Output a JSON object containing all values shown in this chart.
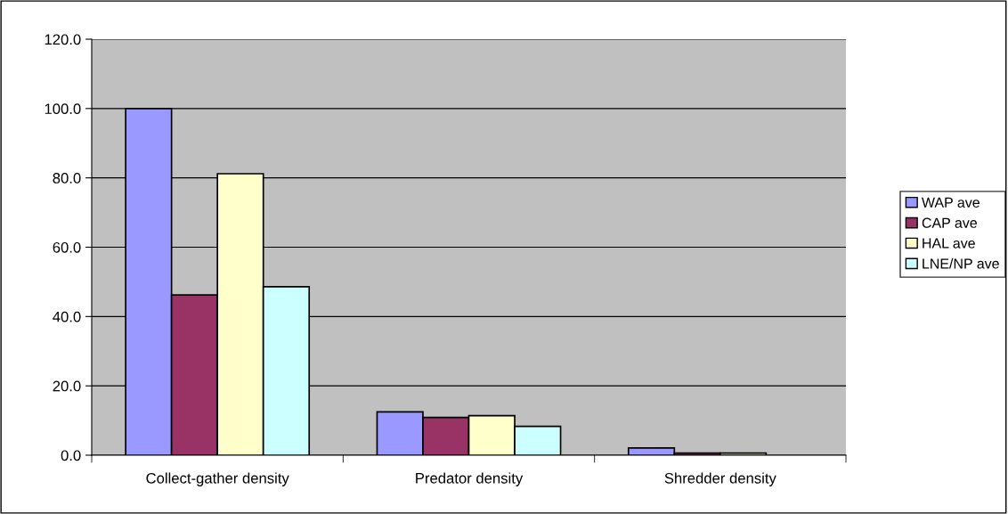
{
  "chart_data": {
    "type": "bar",
    "categories": [
      "Collect-gather density",
      "Predator density",
      "Shredder density"
    ],
    "series": [
      {
        "name": "WAP ave",
        "color": "#9999ff",
        "values": [
          100.0,
          12.5,
          2.1
        ]
      },
      {
        "name": "CAP ave",
        "color": "#993366",
        "values": [
          46.2,
          10.9,
          0.6
        ]
      },
      {
        "name": "HAL ave",
        "color": "#ffffcc",
        "values": [
          81.2,
          11.4,
          0.6
        ]
      },
      {
        "name": "LNE/NP ave",
        "color": "#ccffff",
        "values": [
          48.6,
          8.3,
          null
        ]
      }
    ],
    "ylim": [
      0,
      120
    ],
    "yticks": [
      {
        "value": 0,
        "label": "0.0"
      },
      {
        "value": 20,
        "label": "20.0"
      },
      {
        "value": 40,
        "label": "40.0"
      },
      {
        "value": 60,
        "label": "60.0"
      },
      {
        "value": 80,
        "label": "80.0"
      },
      {
        "value": 100,
        "label": "100.0"
      },
      {
        "value": 120,
        "label": "120.0"
      }
    ],
    "grid": "y",
    "legend": "right"
  }
}
